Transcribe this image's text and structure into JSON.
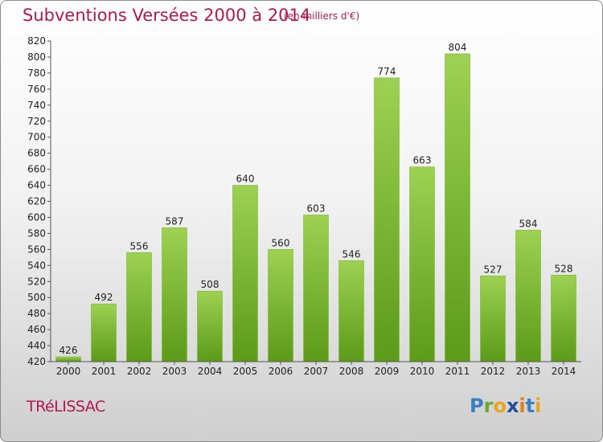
{
  "header": {
    "title": "Subventions Versées 2000 à 2014",
    "subtitle": "(en milliers d'€)"
  },
  "footer": {
    "commune": "TRéLISSAC",
    "logo": "Proxiti"
  },
  "colors": {
    "title": "#b5174f",
    "bar_top": "#9dd152",
    "bar_bottom": "#5c9a18",
    "axis": "#555555"
  },
  "chart_data": {
    "type": "bar",
    "title": "Subventions Versées 2000 à 2014",
    "subtitle": "(en milliers d'€)",
    "xlabel": "",
    "ylabel": "",
    "categories": [
      "2000",
      "2001",
      "2002",
      "2003",
      "2004",
      "2005",
      "2006",
      "2007",
      "2008",
      "2009",
      "2010",
      "2011",
      "2012",
      "2013",
      "2014"
    ],
    "values": [
      426,
      492,
      556,
      587,
      508,
      640,
      560,
      603,
      546,
      774,
      663,
      804,
      527,
      584,
      528
    ],
    "ylim": [
      420,
      820
    ],
    "yticks": [
      420,
      440,
      460,
      480,
      500,
      520,
      540,
      560,
      580,
      600,
      620,
      640,
      660,
      680,
      700,
      720,
      740,
      760,
      780,
      800,
      820
    ],
    "grid": false,
    "legend": "none"
  }
}
